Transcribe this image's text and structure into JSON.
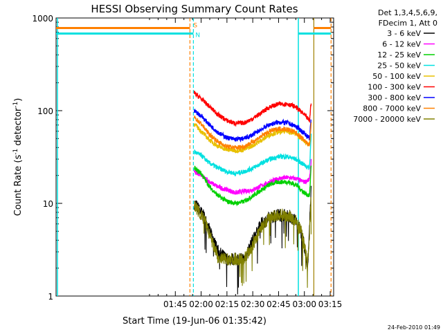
{
  "chart_data": {
    "type": "line",
    "title": "HESSI Observing Summary Count Rates",
    "xlabel": "Start Time (19-Jun-06 01:35:42)",
    "ylabel_main": "Count Rate (s",
    "ylabel_sup1": "-1",
    "ylabel_mid": " detector",
    "ylabel_sup2": "-1",
    "ylabel_end": ")",
    "y_scale": "log",
    "ylim": [
      1,
      1000
    ],
    "xlim_minutes": [
      35.7,
      197.0
    ],
    "x_tick_labels": [
      "01:45",
      "02:00",
      "02:15",
      "02:30",
      "02:45",
      "03:00",
      "03:15"
    ],
    "x_ticks_minutes": [
      105,
      120,
      135,
      150,
      165,
      180,
      195
    ],
    "y_tick_labels": [
      "1",
      "10",
      "100",
      "1000"
    ],
    "y_ticks": [
      1,
      10,
      100,
      1000
    ],
    "legend_placement": "top-right",
    "legend_header": [
      "Det 1,3,4,5,6,9,",
      "FDecim 1, Att 0"
    ],
    "series": [
      {
        "name": "3 - 6 keV",
        "color": "#000000",
        "x": [
          116,
          118,
          122,
          126,
          130,
          135,
          140,
          145,
          150,
          155,
          160,
          165,
          170,
          175,
          178,
          180,
          182,
          183,
          184
        ],
        "values": [
          10,
          9,
          7,
          4.5,
          3,
          2.5,
          2.5,
          2.5,
          4,
          6,
          7,
          7.5,
          7.5,
          6.5,
          5,
          3.5,
          2,
          6,
          15
        ]
      },
      {
        "name": "6 - 12 keV",
        "color": "#ff00ff",
        "x": [
          116,
          120,
          125,
          130,
          135,
          140,
          145,
          150,
          155,
          160,
          165,
          170,
          175,
          180,
          183,
          184
        ],
        "values": [
          22,
          20,
          17,
          15,
          14,
          13,
          13.5,
          14,
          15.5,
          17,
          18.5,
          19,
          18.5,
          17,
          18,
          30
        ]
      },
      {
        "name": "12 - 25 keV",
        "color": "#00d000",
        "x": [
          116,
          120,
          125,
          130,
          135,
          140,
          145,
          150,
          155,
          160,
          165,
          170,
          175,
          180,
          183,
          184
        ],
        "values": [
          24,
          21,
          15,
          12,
          10.5,
          10,
          10.5,
          12,
          14,
          16,
          17,
          17,
          16,
          13,
          12,
          28
        ]
      },
      {
        "name": "25 - 50 keV",
        "color": "#00e0e0",
        "x": [
          116,
          120,
          125,
          130,
          135,
          140,
          145,
          150,
          155,
          160,
          165,
          170,
          175,
          180,
          183,
          184
        ],
        "values": [
          36,
          33,
          27,
          24,
          22,
          21,
          22,
          24,
          27,
          30,
          32,
          32,
          30,
          26,
          24,
          60
        ]
      },
      {
        "name": "50 - 100 keV",
        "color": "#e8c000",
        "x": [
          116,
          120,
          125,
          130,
          135,
          140,
          145,
          150,
          155,
          160,
          165,
          170,
          175,
          180,
          183,
          184
        ],
        "values": [
          72,
          60,
          48,
          41,
          38,
          37,
          38,
          42,
          48,
          55,
          59,
          60,
          56,
          47,
          42,
          80
        ]
      },
      {
        "name": "100 - 300 keV",
        "color": "#ff0000",
        "x": [
          116,
          120,
          125,
          130,
          135,
          140,
          145,
          150,
          155,
          160,
          165,
          170,
          175,
          180,
          183,
          184
        ],
        "values": [
          155,
          135,
          110,
          90,
          78,
          73,
          74,
          82,
          95,
          110,
          118,
          118,
          110,
          90,
          78,
          130
        ]
      },
      {
        "name": "300 - 800 keV",
        "color": "#0000ff",
        "x": [
          116,
          120,
          125,
          130,
          135,
          140,
          145,
          150,
          155,
          160,
          165,
          170,
          175,
          180,
          183,
          184
        ],
        "values": [
          100,
          88,
          70,
          58,
          51,
          49,
          50,
          55,
          63,
          71,
          75,
          74,
          68,
          57,
          50,
          85
        ]
      },
      {
        "name": "800 - 7000 keV",
        "color": "#ff8000",
        "x": [
          116,
          120,
          125,
          130,
          135,
          140,
          145,
          150,
          155,
          160,
          165,
          170,
          175,
          180,
          183,
          184
        ],
        "values": [
          85,
          72,
          55,
          46,
          41,
          40,
          41,
          46,
          53,
          60,
          64,
          63,
          58,
          48,
          42,
          75
        ]
      },
      {
        "name": "7000 - 20000 keV",
        "color": "#808000",
        "x": [
          116,
          118,
          122,
          126,
          130,
          135,
          140,
          145,
          150,
          155,
          160,
          165,
          170,
          175,
          178,
          180,
          182,
          183,
          184
        ],
        "values": [
          9.5,
          8.5,
          6.5,
          4,
          2.5,
          2.5,
          2.5,
          2.5,
          3.5,
          5.5,
          7,
          7.5,
          7.5,
          6.5,
          5,
          3.5,
          2.5,
          5,
          12
        ]
      }
    ],
    "annotations": {
      "saa_label": "S",
      "night_label": "N",
      "saa_level": 780,
      "night_level": 680,
      "saa_segments": [
        [
          35.7,
          113.5
        ],
        [
          185.5,
          195.5
        ]
      ],
      "night_segments": [
        [
          35.7,
          115.5
        ],
        [
          176.5,
          195.5
        ]
      ],
      "orange_dashed_lines_minutes": [
        113.5,
        195.5
      ],
      "cyan_dashed_lines_minutes": [
        115.5
      ],
      "cyan_solid_lines_minutes": [
        36.5,
        176.5
      ],
      "olive_solid_lines_minutes": [
        185.5
      ]
    }
  },
  "footer": {
    "date": "24-Feb-2010 01:49"
  }
}
